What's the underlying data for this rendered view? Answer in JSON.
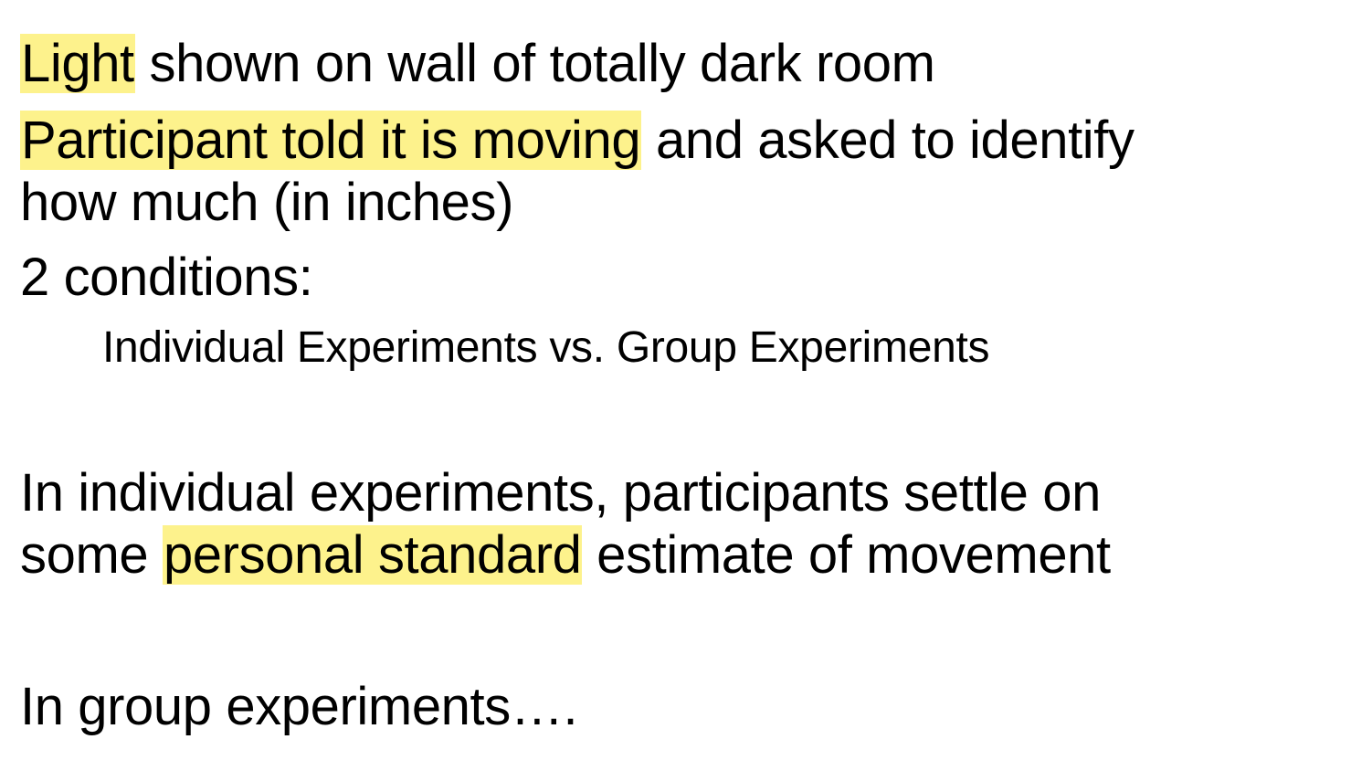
{
  "highlight_color": "#fdf28c",
  "lines": {
    "l1": {
      "hl": "Light",
      "rest": " shown on wall of totally dark room"
    },
    "l2": {
      "hl": "Participant told it is moving",
      "rest": " and asked to identify"
    },
    "l3": {
      "text": "how much (in inches)"
    },
    "l4": {
      "text": "2 conditions:"
    },
    "l5": {
      "text": "Individual Experiments vs. Group Experiments"
    },
    "l6": {
      "text": "In individual experiments, participants settle on"
    },
    "l7": {
      "pre": "some ",
      "hl": "personal standard",
      "rest": " estimate of movement"
    },
    "l8": {
      "text": "In group experiments…."
    }
  }
}
